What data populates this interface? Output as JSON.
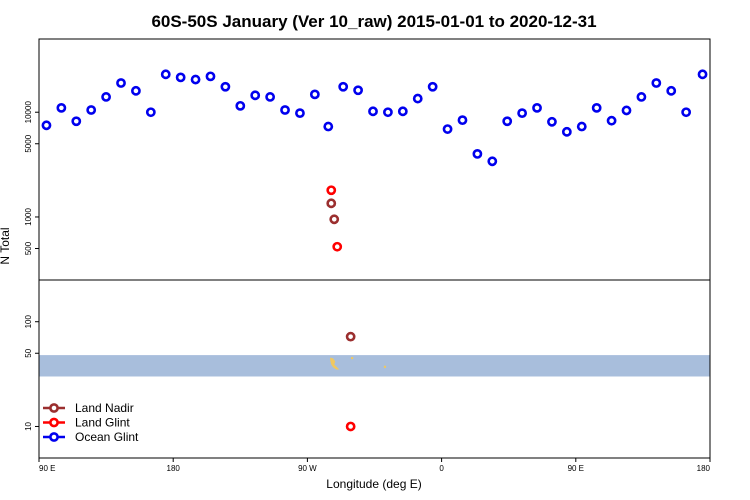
{
  "chart_data": {
    "type": "scatter",
    "title": "60S-50S January (Ver 10_raw)   2015-01-01 to 2020-12-31",
    "xlabel": "Longitude (deg E)",
    "ylabel": "N Total",
    "x_ticks": [
      {
        "value": 90,
        "label": "90 E"
      },
      {
        "value": 180,
        "label": "180"
      },
      {
        "value": 270,
        "label": "90 W"
      },
      {
        "value": 360,
        "label": "0"
      },
      {
        "value": 450,
        "label": "90 E"
      },
      {
        "value": 540,
        "label": "180"
      }
    ],
    "xlim": [
      90,
      540
    ],
    "y_scale": "log",
    "ylim": [
      5,
      50000
    ],
    "y_ticks": [
      {
        "value": 10,
        "label": "10"
      },
      {
        "value": 50,
        "label": "50"
      },
      {
        "value": 100,
        "label": "100"
      },
      {
        "value": 500,
        "label": "500"
      },
      {
        "value": 1000,
        "label": "1000"
      },
      {
        "value": 5000,
        "label": "5000"
      },
      {
        "value": 10000,
        "label": "10000"
      }
    ],
    "divider_y": 250,
    "map_band": {
      "y_range": [
        30,
        48
      ],
      "color": "#a8bedc"
    },
    "land_color": "#f0c860",
    "legend_position": "bottom-left",
    "series": [
      {
        "name": "Land Nadir",
        "color": "#9b2f2f",
        "points": [
          [
            286,
            1350
          ],
          [
            288,
            950
          ],
          [
            299,
            72
          ]
        ]
      },
      {
        "name": "Land Glint",
        "color": "#ff0000",
        "points": [
          [
            286,
            1800
          ],
          [
            290,
            520
          ],
          [
            299,
            10
          ]
        ]
      },
      {
        "name": "Ocean Glint",
        "color": "#0000ee",
        "points": [
          [
            95,
            7500
          ],
          [
            105,
            11000
          ],
          [
            115,
            8200
          ],
          [
            125,
            10500
          ],
          [
            135,
            14000
          ],
          [
            145,
            19000
          ],
          [
            155,
            16000
          ],
          [
            165,
            10000
          ],
          [
            175,
            23000
          ],
          [
            185,
            21500
          ],
          [
            195,
            20500
          ],
          [
            205,
            22000
          ],
          [
            215,
            17500
          ],
          [
            225,
            11500
          ],
          [
            235,
            14500
          ],
          [
            245,
            14000
          ],
          [
            255,
            10500
          ],
          [
            265,
            9800
          ],
          [
            275,
            14800
          ],
          [
            284,
            7300
          ],
          [
            294,
            17500
          ],
          [
            304,
            16200
          ],
          [
            314,
            10200
          ],
          [
            324,
            10000
          ],
          [
            334,
            10200
          ],
          [
            344,
            13500
          ],
          [
            354,
            17500
          ],
          [
            364,
            6900
          ],
          [
            374,
            8400
          ],
          [
            384,
            4000
          ],
          [
            394,
            3400
          ],
          [
            404,
            8200
          ],
          [
            414,
            9800
          ],
          [
            424,
            11000
          ],
          [
            434,
            8100
          ],
          [
            444,
            6500
          ],
          [
            454,
            7300
          ],
          [
            464,
            11000
          ],
          [
            474,
            8300
          ],
          [
            484,
            10400
          ],
          [
            494,
            14000
          ],
          [
            504,
            19000
          ],
          [
            514,
            16000
          ],
          [
            524,
            10000
          ],
          [
            535,
            23000
          ]
        ]
      }
    ]
  }
}
